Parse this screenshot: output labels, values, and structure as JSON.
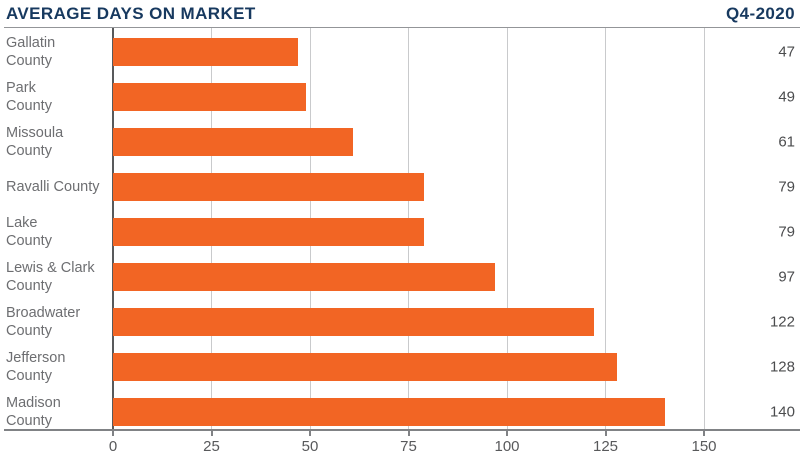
{
  "header": {
    "title": "AVERAGE DAYS ON MARKET",
    "period": "Q4-2020"
  },
  "colors": {
    "bar": "#F26524",
    "title_navy": "#17395F",
    "label_gray": "#6D6E71",
    "value_gray": "#4B4C4E",
    "gridline_gray": "#C9CACC",
    "axis_gray": "#808285"
  },
  "chart_data": {
    "type": "bar",
    "orientation": "horizontal",
    "title": "AVERAGE DAYS ON MARKET",
    "subtitle": "Q4-2020",
    "categories": [
      "Gallatin\nCounty",
      "Park\nCounty",
      "Missoula\nCounty",
      "Ravalli County",
      "Lake\nCounty",
      "Lewis & Clark\nCounty",
      "Broadwater\nCounty",
      "Jefferson\nCounty",
      "Madison\nCounty"
    ],
    "values": [
      47,
      49,
      61,
      79,
      79,
      97,
      122,
      128,
      140
    ],
    "x_ticks": [
      0,
      25,
      50,
      75,
      100,
      125,
      150
    ],
    "xlim": [
      0,
      174
    ],
    "grid": true,
    "legend": false,
    "value_labels_shown": true
  }
}
